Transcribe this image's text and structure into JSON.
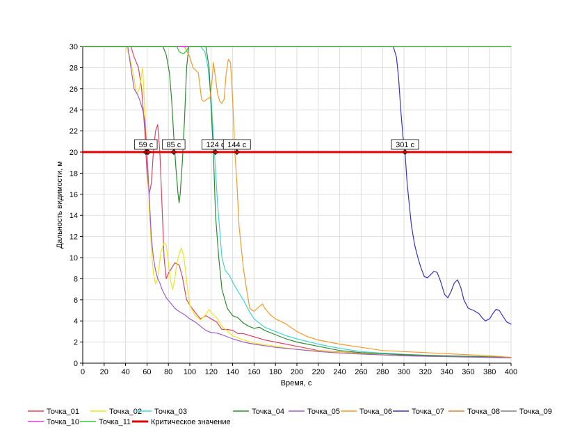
{
  "chart_data": {
    "type": "line",
    "title": "",
    "xlabel": "Время, с",
    "ylabel": "Дальность видимости, м",
    "xlim": [
      0,
      400
    ],
    "ylim": [
      0,
      30
    ],
    "x_ticks": [
      0,
      20,
      40,
      60,
      80,
      100,
      120,
      140,
      160,
      180,
      200,
      220,
      240,
      260,
      280,
      300,
      320,
      340,
      360,
      380,
      400
    ],
    "y_ticks": [
      0,
      2,
      4,
      6,
      8,
      10,
      12,
      14,
      16,
      18,
      20,
      22,
      24,
      26,
      28,
      30
    ],
    "grid": true,
    "legend_position": "bottom",
    "colors": {
      "grid": "#dddddd",
      "axis": "#000000",
      "critical": "#e00000"
    },
    "series": [
      {
        "name": "Точка_01",
        "color": "#dc4560",
        "points": [
          [
            0,
            30
          ],
          [
            45,
            30
          ],
          [
            48,
            29
          ],
          [
            52,
            28
          ],
          [
            55,
            26
          ],
          [
            58,
            22
          ],
          [
            60,
            18
          ],
          [
            62,
            16
          ],
          [
            64,
            17
          ],
          [
            66,
            20
          ],
          [
            68,
            22
          ],
          [
            70,
            22.6
          ],
          [
            72,
            20
          ],
          [
            74,
            15
          ],
          [
            76,
            10
          ],
          [
            78,
            8
          ],
          [
            80,
            8.5
          ],
          [
            83,
            9
          ],
          [
            86,
            9.5
          ],
          [
            90,
            9.3
          ],
          [
            93,
            8.2
          ],
          [
            97,
            6
          ],
          [
            100,
            5.5
          ],
          [
            105,
            4.8
          ],
          [
            110,
            4.2
          ],
          [
            115,
            4.5
          ],
          [
            120,
            4.2
          ],
          [
            125,
            3.9
          ],
          [
            130,
            3.2
          ],
          [
            135,
            3.2
          ],
          [
            140,
            3.1
          ],
          [
            145,
            2.8
          ],
          [
            150,
            2.8
          ],
          [
            160,
            2.5
          ],
          [
            170,
            2.2
          ],
          [
            180,
            2.0
          ],
          [
            200,
            1.6
          ],
          [
            220,
            1.2
          ],
          [
            250,
            1.0
          ],
          [
            280,
            0.8
          ],
          [
            320,
            0.7
          ],
          [
            360,
            0.6
          ],
          [
            400,
            0.55
          ]
        ]
      },
      {
        "name": "Точка_02",
        "color": "#f2e419",
        "points": [
          [
            0,
            30
          ],
          [
            40,
            30
          ],
          [
            44,
            29
          ],
          [
            48,
            27
          ],
          [
            50,
            25.5
          ],
          [
            53,
            26
          ],
          [
            56,
            28
          ],
          [
            58,
            24
          ],
          [
            60,
            20
          ],
          [
            62,
            15
          ],
          [
            64,
            11
          ],
          [
            66,
            8.5
          ],
          [
            68,
            7.5
          ],
          [
            70,
            8
          ],
          [
            73,
            10.5
          ],
          [
            76,
            11.4
          ],
          [
            78,
            11.2
          ],
          [
            80,
            9.5
          ],
          [
            82,
            7.8
          ],
          [
            84,
            7
          ],
          [
            86,
            8
          ],
          [
            88,
            9.5
          ],
          [
            90,
            10.3
          ],
          [
            92,
            10.9
          ],
          [
            94,
            10.3
          ],
          [
            96,
            8.8
          ],
          [
            98,
            7
          ],
          [
            100,
            5.5
          ],
          [
            105,
            4.5
          ],
          [
            110,
            4.1
          ],
          [
            115,
            4.6
          ],
          [
            118,
            5.1
          ],
          [
            120,
            4.8
          ],
          [
            125,
            4.3
          ],
          [
            130,
            3.5
          ],
          [
            140,
            2.6
          ],
          [
            150,
            2.2
          ],
          [
            160,
            1.9
          ],
          [
            180,
            1.6
          ],
          [
            200,
            1.3
          ],
          [
            230,
            1.1
          ],
          [
            260,
            0.9
          ],
          [
            300,
            0.7
          ],
          [
            350,
            0.6
          ],
          [
            400,
            0.5
          ]
        ]
      },
      {
        "name": "Точка_03",
        "color": "#3dd6d6",
        "points": [
          [
            0,
            30
          ],
          [
            110,
            30
          ],
          [
            114,
            29.5
          ],
          [
            117,
            28
          ],
          [
            120,
            25
          ],
          [
            123,
            20
          ],
          [
            126,
            15
          ],
          [
            130,
            10
          ],
          [
            133,
            8.8
          ],
          [
            137,
            8.3
          ],
          [
            141,
            7.5
          ],
          [
            145,
            6.8
          ],
          [
            150,
            6
          ],
          [
            155,
            5
          ],
          [
            160,
            4.2
          ],
          [
            170,
            3.4
          ],
          [
            180,
            3.0
          ],
          [
            190,
            2.6
          ],
          [
            200,
            2.3
          ],
          [
            220,
            1.8
          ],
          [
            240,
            1.4
          ],
          [
            260,
            1.1
          ],
          [
            280,
            0.95
          ],
          [
            300,
            0.85
          ],
          [
            330,
            0.7
          ],
          [
            360,
            0.6
          ],
          [
            400,
            0.5
          ]
        ]
      },
      {
        "name": "Точка_04",
        "color": "#2e8b2e",
        "points": [
          [
            0,
            30
          ],
          [
            70,
            30
          ],
          [
            75,
            30
          ],
          [
            78,
            29.2
          ],
          [
            81,
            27.5
          ],
          [
            83,
            25
          ],
          [
            85,
            21.5
          ],
          [
            87,
            18.5
          ],
          [
            89,
            16
          ],
          [
            90,
            15.2
          ],
          [
            91,
            16
          ],
          [
            93,
            19
          ],
          [
            95,
            23
          ],
          [
            97,
            28
          ],
          [
            99,
            30
          ],
          [
            115,
            30
          ],
          [
            118,
            28
          ],
          [
            120,
            24
          ],
          [
            122,
            20
          ],
          [
            124,
            14
          ],
          [
            127,
            10
          ],
          [
            130,
            7
          ],
          [
            135,
            5.2
          ],
          [
            140,
            4.5
          ],
          [
            145,
            4.3
          ],
          [
            150,
            3.8
          ],
          [
            155,
            3.5
          ],
          [
            160,
            3.3
          ],
          [
            165,
            3.4
          ],
          [
            170,
            3.1
          ],
          [
            180,
            2.7
          ],
          [
            190,
            2.3
          ],
          [
            200,
            2.0
          ],
          [
            220,
            1.6
          ],
          [
            240,
            1.2
          ],
          [
            260,
            1.0
          ],
          [
            280,
            0.9
          ],
          [
            300,
            0.8
          ],
          [
            340,
            0.7
          ],
          [
            400,
            0.55
          ]
        ]
      },
      {
        "name": "Точка_05",
        "color": "#9e5ec7",
        "points": [
          [
            0,
            30
          ],
          [
            42,
            30
          ],
          [
            45,
            28
          ],
          [
            48,
            26
          ],
          [
            51,
            25.5
          ],
          [
            53,
            25
          ],
          [
            56,
            24
          ],
          [
            58,
            23
          ],
          [
            60,
            20
          ],
          [
            62,
            16
          ],
          [
            64,
            12
          ],
          [
            66,
            10
          ],
          [
            68,
            8.8
          ],
          [
            70,
            8
          ],
          [
            72,
            7.6
          ],
          [
            74,
            7
          ],
          [
            78,
            6.2
          ],
          [
            82,
            5.7
          ],
          [
            86,
            5.2
          ],
          [
            90,
            4.9
          ],
          [
            95,
            4.6
          ],
          [
            100,
            4.2
          ],
          [
            105,
            3.9
          ],
          [
            110,
            3.5
          ],
          [
            115,
            3.1
          ],
          [
            120,
            2.9
          ],
          [
            125,
            2.85
          ],
          [
            130,
            2.7
          ],
          [
            140,
            2.3
          ],
          [
            150,
            2.0
          ],
          [
            160,
            1.8
          ],
          [
            180,
            1.5
          ],
          [
            200,
            1.3
          ],
          [
            220,
            1.1
          ],
          [
            250,
            0.9
          ],
          [
            300,
            0.7
          ],
          [
            350,
            0.6
          ],
          [
            400,
            0.5
          ]
        ]
      },
      {
        "name": "Точка_06",
        "color": "#f59a29",
        "points": [
          [
            0,
            30
          ],
          [
            95,
            30
          ],
          [
            100,
            29
          ],
          [
            103,
            28
          ],
          [
            108,
            27.5
          ],
          [
            111,
            25
          ],
          [
            113,
            24.8
          ],
          [
            116,
            25
          ],
          [
            119,
            25.2
          ],
          [
            121,
            27
          ],
          [
            122,
            28.5
          ],
          [
            124,
            27
          ],
          [
            126,
            25.5
          ],
          [
            128,
            24.8
          ],
          [
            130,
            24.6
          ],
          [
            132,
            25
          ],
          [
            134,
            27.5
          ],
          [
            136,
            28.8
          ],
          [
            138,
            28.5
          ],
          [
            140,
            25
          ],
          [
            142,
            20
          ],
          [
            144,
            17
          ],
          [
            146,
            13
          ],
          [
            148,
            11
          ],
          [
            150,
            9
          ],
          [
            153,
            7
          ],
          [
            156,
            5.2
          ],
          [
            160,
            4.9
          ],
          [
            164,
            5.3
          ],
          [
            168,
            5.6
          ],
          [
            170,
            5.2
          ],
          [
            175,
            4.6
          ],
          [
            180,
            4.2
          ],
          [
            190,
            3.7
          ],
          [
            200,
            3.0
          ],
          [
            210,
            2.5
          ],
          [
            220,
            2.2
          ],
          [
            240,
            1.8
          ],
          [
            260,
            1.5
          ],
          [
            280,
            1.2
          ],
          [
            300,
            1.1
          ],
          [
            320,
            1.0
          ],
          [
            340,
            0.9
          ],
          [
            360,
            0.8
          ],
          [
            380,
            0.7
          ],
          [
            400,
            0.55
          ]
        ]
      },
      {
        "name": "Точка_07",
        "color": "#3333c4",
        "points": [
          [
            0,
            30
          ],
          [
            290,
            30
          ],
          [
            293,
            29
          ],
          [
            295,
            27
          ],
          [
            297,
            24
          ],
          [
            299,
            21.5
          ],
          [
            301,
            20
          ],
          [
            303,
            17
          ],
          [
            305,
            15
          ],
          [
            307,
            13
          ],
          [
            310,
            11.2
          ],
          [
            313,
            10
          ],
          [
            316,
            9
          ],
          [
            319,
            8.2
          ],
          [
            322,
            8.1
          ],
          [
            325,
            8.4
          ],
          [
            328,
            8.7
          ],
          [
            331,
            8.6
          ],
          [
            334,
            7.8
          ],
          [
            338,
            6.5
          ],
          [
            341,
            6.2
          ],
          [
            344,
            6.8
          ],
          [
            347,
            7.6
          ],
          [
            350,
            7.9
          ],
          [
            353,
            7.2
          ],
          [
            356,
            6
          ],
          [
            360,
            5.2
          ],
          [
            365,
            5
          ],
          [
            370,
            4.7
          ],
          [
            373,
            4.3
          ],
          [
            376,
            4.0
          ],
          [
            380,
            4.2
          ],
          [
            383,
            4.7
          ],
          [
            386,
            5.1
          ],
          [
            389,
            5.0
          ],
          [
            392,
            4.5
          ],
          [
            396,
            3.9
          ],
          [
            400,
            3.7
          ]
        ]
      },
      {
        "name": "Точка_08",
        "color": "#e0812f",
        "points": [
          [
            0,
            30
          ],
          [
            400,
            30
          ]
        ]
      },
      {
        "name": "Точка_09",
        "color": "#808080",
        "points": [
          [
            0,
            30
          ],
          [
            400,
            30
          ]
        ]
      },
      {
        "name": "Точка_10",
        "color": "#e038e0",
        "points": [
          [
            0,
            30
          ],
          [
            400,
            30
          ]
        ]
      },
      {
        "name": "Точка_11",
        "color": "#33cc33",
        "points": [
          [
            0,
            30
          ],
          [
            84,
            30
          ],
          [
            88,
            30
          ],
          [
            90,
            29.5
          ],
          [
            94,
            29.3
          ],
          [
            97,
            29.6
          ],
          [
            99,
            30
          ],
          [
            400,
            30
          ]
        ]
      },
      {
        "name": "Критическое значение",
        "color": "#e00000",
        "critical": true,
        "points": [
          [
            0,
            20
          ],
          [
            400,
            20
          ]
        ]
      }
    ],
    "annotations": [
      {
        "label": "59 с",
        "x": 59,
        "y": 20
      },
      {
        "label": "",
        "x": 61,
        "y": 20
      },
      {
        "label": "85 с",
        "x": 85,
        "y": 20
      },
      {
        "label": "124 с",
        "x": 124,
        "y": 20
      },
      {
        "label": "144 с",
        "x": 144,
        "y": 20
      },
      {
        "label": "301 с",
        "x": 301,
        "y": 20
      }
    ]
  }
}
